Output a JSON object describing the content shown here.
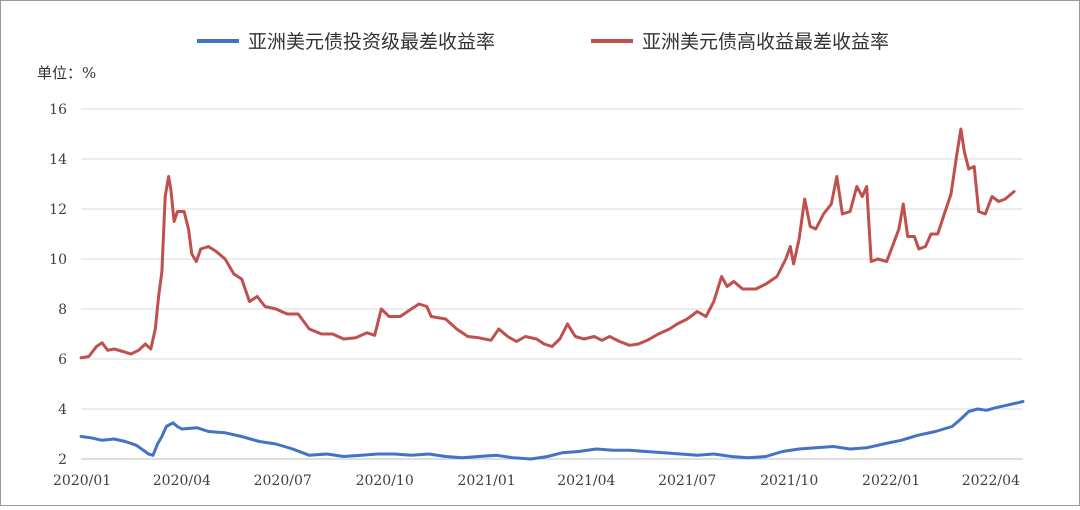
{
  "chart_data": {
    "type": "line",
    "unit_label": "单位：%",
    "ylim": [
      2,
      16
    ],
    "yticks": [
      2,
      4,
      6,
      8,
      10,
      12,
      14,
      16
    ],
    "x_range": [
      "2020-01-01",
      "2022-04-30"
    ],
    "xticks": [
      {
        "label": "2020/01",
        "date": "2020-01-01"
      },
      {
        "label": "2020/04",
        "date": "2020-04-01"
      },
      {
        "label": "2020/07",
        "date": "2020-07-01"
      },
      {
        "label": "2020/10",
        "date": "2020-10-01"
      },
      {
        "label": "2021/01",
        "date": "2021-01-01"
      },
      {
        "label": "2021/04",
        "date": "2021-04-01"
      },
      {
        "label": "2021/07",
        "date": "2021-07-01"
      },
      {
        "label": "2021/10",
        "date": "2021-10-01"
      },
      {
        "label": "2022/01",
        "date": "2022-01-01"
      },
      {
        "label": "2022/04",
        "date": "2022-04-01"
      }
    ],
    "grid": true,
    "legend_position": "top-center",
    "series": [
      {
        "name": "亚洲美元债投资级最差收益率",
        "color": "#4472c4",
        "points": [
          [
            "2020-01-01",
            2.9
          ],
          [
            "2020-01-10",
            2.85
          ],
          [
            "2020-01-20",
            2.75
          ],
          [
            "2020-01-31",
            2.8
          ],
          [
            "2020-02-10",
            2.7
          ],
          [
            "2020-02-20",
            2.55
          ],
          [
            "2020-03-02",
            2.2
          ],
          [
            "2020-03-06",
            2.15
          ],
          [
            "2020-03-10",
            2.6
          ],
          [
            "2020-03-14",
            2.9
          ],
          [
            "2020-03-18",
            3.3
          ],
          [
            "2020-03-24",
            3.45
          ],
          [
            "2020-03-28",
            3.3
          ],
          [
            "2020-04-01",
            3.2
          ],
          [
            "2020-04-15",
            3.25
          ],
          [
            "2020-04-25",
            3.1
          ],
          [
            "2020-05-10",
            3.05
          ],
          [
            "2020-05-25",
            2.9
          ],
          [
            "2020-06-10",
            2.7
          ],
          [
            "2020-06-25",
            2.6
          ],
          [
            "2020-07-10",
            2.4
          ],
          [
            "2020-07-25",
            2.15
          ],
          [
            "2020-08-10",
            2.2
          ],
          [
            "2020-08-25",
            2.1
          ],
          [
            "2020-09-10",
            2.15
          ],
          [
            "2020-09-25",
            2.2
          ],
          [
            "2020-10-10",
            2.2
          ],
          [
            "2020-10-25",
            2.15
          ],
          [
            "2020-11-10",
            2.2
          ],
          [
            "2020-11-25",
            2.1
          ],
          [
            "2020-12-10",
            2.05
          ],
          [
            "2020-12-25",
            2.1
          ],
          [
            "2021-01-10",
            2.15
          ],
          [
            "2021-01-25",
            2.05
          ],
          [
            "2021-02-10",
            2.0
          ],
          [
            "2021-02-25",
            2.1
          ],
          [
            "2021-03-10",
            2.25
          ],
          [
            "2021-03-25",
            2.3
          ],
          [
            "2021-04-10",
            2.4
          ],
          [
            "2021-04-25",
            2.35
          ],
          [
            "2021-05-10",
            2.35
          ],
          [
            "2021-05-25",
            2.3
          ],
          [
            "2021-06-10",
            2.25
          ],
          [
            "2021-06-25",
            2.2
          ],
          [
            "2021-07-10",
            2.15
          ],
          [
            "2021-07-25",
            2.2
          ],
          [
            "2021-08-10",
            2.1
          ],
          [
            "2021-08-25",
            2.05
          ],
          [
            "2021-09-10",
            2.1
          ],
          [
            "2021-09-25",
            2.3
          ],
          [
            "2021-10-10",
            2.4
          ],
          [
            "2021-10-25",
            2.45
          ],
          [
            "2021-11-10",
            2.5
          ],
          [
            "2021-11-25",
            2.4
          ],
          [
            "2021-12-10",
            2.45
          ],
          [
            "2021-12-25",
            2.6
          ],
          [
            "2022-01-10",
            2.75
          ],
          [
            "2022-01-25",
            2.95
          ],
          [
            "2022-02-10",
            3.1
          ],
          [
            "2022-02-25",
            3.3
          ],
          [
            "2022-03-05",
            3.6
          ],
          [
            "2022-03-12",
            3.9
          ],
          [
            "2022-03-20",
            4.0
          ],
          [
            "2022-03-28",
            3.95
          ],
          [
            "2022-04-05",
            4.05
          ],
          [
            "2022-04-15",
            4.15
          ],
          [
            "2022-04-25",
            4.25
          ],
          [
            "2022-04-30",
            4.3
          ]
        ]
      },
      {
        "name": "亚洲美元债高收益最差收益率",
        "color": "#c0504d",
        "points": [
          [
            "2020-01-01",
            6.05
          ],
          [
            "2020-01-08",
            6.1
          ],
          [
            "2020-01-15",
            6.5
          ],
          [
            "2020-01-20",
            6.65
          ],
          [
            "2020-01-25",
            6.35
          ],
          [
            "2020-01-31",
            6.4
          ],
          [
            "2020-02-08",
            6.3
          ],
          [
            "2020-02-15",
            6.2
          ],
          [
            "2020-02-22",
            6.35
          ],
          [
            "2020-02-28",
            6.6
          ],
          [
            "2020-03-04",
            6.4
          ],
          [
            "2020-03-08",
            7.2
          ],
          [
            "2020-03-11",
            8.5
          ],
          [
            "2020-03-14",
            9.5
          ],
          [
            "2020-03-17",
            12.5
          ],
          [
            "2020-03-20",
            13.3
          ],
          [
            "2020-03-22",
            12.8
          ],
          [
            "2020-03-25",
            11.5
          ],
          [
            "2020-03-28",
            11.9
          ],
          [
            "2020-04-03",
            11.9
          ],
          [
            "2020-04-07",
            11.2
          ],
          [
            "2020-04-10",
            10.2
          ],
          [
            "2020-04-14",
            9.9
          ],
          [
            "2020-04-18",
            10.4
          ],
          [
            "2020-04-25",
            10.5
          ],
          [
            "2020-05-02",
            10.3
          ],
          [
            "2020-05-10",
            10.0
          ],
          [
            "2020-05-18",
            9.4
          ],
          [
            "2020-05-25",
            9.2
          ],
          [
            "2020-06-01",
            8.3
          ],
          [
            "2020-06-08",
            8.5
          ],
          [
            "2020-06-15",
            8.1
          ],
          [
            "2020-06-25",
            8.0
          ],
          [
            "2020-07-05",
            7.8
          ],
          [
            "2020-07-15",
            7.8
          ],
          [
            "2020-07-25",
            7.2
          ],
          [
            "2020-08-05",
            7.0
          ],
          [
            "2020-08-15",
            7.0
          ],
          [
            "2020-08-25",
            6.8
          ],
          [
            "2020-09-05",
            6.85
          ],
          [
            "2020-09-15",
            7.05
          ],
          [
            "2020-09-22",
            6.95
          ],
          [
            "2020-09-28",
            8.0
          ],
          [
            "2020-10-05",
            7.7
          ],
          [
            "2020-10-15",
            7.7
          ],
          [
            "2020-10-25",
            8.0
          ],
          [
            "2020-11-01",
            8.2
          ],
          [
            "2020-11-08",
            8.1
          ],
          [
            "2020-11-12",
            7.7
          ],
          [
            "2020-11-25",
            7.6
          ],
          [
            "2020-12-05",
            7.2
          ],
          [
            "2020-12-15",
            6.9
          ],
          [
            "2020-12-25",
            6.85
          ],
          [
            "2021-01-05",
            6.75
          ],
          [
            "2021-01-12",
            7.2
          ],
          [
            "2021-01-20",
            6.9
          ],
          [
            "2021-01-28",
            6.7
          ],
          [
            "2021-02-05",
            6.9
          ],
          [
            "2021-02-15",
            6.8
          ],
          [
            "2021-02-22",
            6.6
          ],
          [
            "2021-03-01",
            6.5
          ],
          [
            "2021-03-08",
            6.8
          ],
          [
            "2021-03-15",
            7.4
          ],
          [
            "2021-03-22",
            6.9
          ],
          [
            "2021-03-30",
            6.8
          ],
          [
            "2021-04-08",
            6.9
          ],
          [
            "2021-04-15",
            6.75
          ],
          [
            "2021-04-22",
            6.9
          ],
          [
            "2021-05-01",
            6.7
          ],
          [
            "2021-05-10",
            6.55
          ],
          [
            "2021-05-18",
            6.6
          ],
          [
            "2021-05-26",
            6.75
          ],
          [
            "2021-06-05",
            7.0
          ],
          [
            "2021-06-15",
            7.2
          ],
          [
            "2021-06-22",
            7.4
          ],
          [
            "2021-07-01",
            7.6
          ],
          [
            "2021-07-10",
            7.9
          ],
          [
            "2021-07-18",
            7.7
          ],
          [
            "2021-07-25",
            8.3
          ],
          [
            "2021-08-01",
            9.3
          ],
          [
            "2021-08-06",
            8.9
          ],
          [
            "2021-08-12",
            9.1
          ],
          [
            "2021-08-20",
            8.8
          ],
          [
            "2021-09-01",
            8.8
          ],
          [
            "2021-09-10",
            9.0
          ],
          [
            "2021-09-20",
            9.3
          ],
          [
            "2021-09-28",
            10.0
          ],
          [
            "2021-10-02",
            10.5
          ],
          [
            "2021-10-05",
            9.8
          ],
          [
            "2021-10-10",
            10.8
          ],
          [
            "2021-10-15",
            12.4
          ],
          [
            "2021-10-20",
            11.3
          ],
          [
            "2021-10-25",
            11.2
          ],
          [
            "2021-11-01",
            11.8
          ],
          [
            "2021-11-08",
            12.2
          ],
          [
            "2021-11-13",
            13.3
          ],
          [
            "2021-11-18",
            11.8
          ],
          [
            "2021-11-25",
            11.9
          ],
          [
            "2021-12-01",
            12.9
          ],
          [
            "2021-12-06",
            12.5
          ],
          [
            "2021-12-10",
            12.9
          ],
          [
            "2021-12-14",
            9.9
          ],
          [
            "2021-12-20",
            10.0
          ],
          [
            "2021-12-28",
            9.9
          ],
          [
            "2022-01-03",
            10.6
          ],
          [
            "2022-01-08",
            11.2
          ],
          [
            "2022-01-12",
            12.2
          ],
          [
            "2022-01-16",
            10.9
          ],
          [
            "2022-01-22",
            10.9
          ],
          [
            "2022-01-26",
            10.4
          ],
          [
            "2022-02-01",
            10.5
          ],
          [
            "2022-02-06",
            11.0
          ],
          [
            "2022-02-12",
            11.0
          ],
          [
            "2022-02-18",
            11.8
          ],
          [
            "2022-02-24",
            12.6
          ],
          [
            "2022-03-01",
            14.1
          ],
          [
            "2022-03-05",
            15.2
          ],
          [
            "2022-03-08",
            14.3
          ],
          [
            "2022-03-12",
            13.6
          ],
          [
            "2022-03-17",
            13.7
          ],
          [
            "2022-03-21",
            11.9
          ],
          [
            "2022-03-27",
            11.8
          ],
          [
            "2022-04-02",
            12.5
          ],
          [
            "2022-04-08",
            12.3
          ],
          [
            "2022-04-14",
            12.4
          ],
          [
            "2022-04-22",
            12.7
          ]
        ]
      }
    ]
  }
}
